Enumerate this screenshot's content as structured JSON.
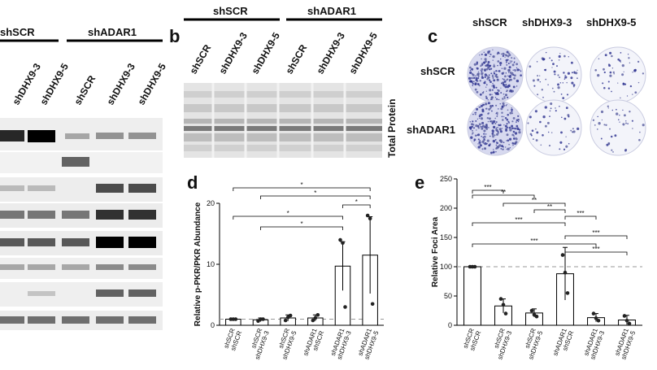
{
  "groups": {
    "shscr": "shSCR",
    "shadar1": "shADAR1"
  },
  "lanes": [
    "shSCR",
    "shDHX9-3",
    "shDHX9-5",
    "shSCR",
    "shDHX9-3",
    "shDHX9-5"
  ],
  "panel_a": {
    "lanes_visible": [
      "shDHX9-3",
      "shDHX9-5",
      "shSCR",
      "shDHX9-3",
      "shDHX9-5"
    ]
  },
  "panel_b": {
    "letter": "b",
    "side_label": "Total Protein"
  },
  "panel_c": {
    "letter": "c",
    "col_headers": [
      "shSCR",
      "shDHX9-3",
      "shDHX9-5"
    ],
    "row_headers": [
      "shSCR",
      "shADAR1"
    ]
  },
  "chart_data": [
    {
      "panel": "d",
      "type": "bar",
      "ylabel": "Relative p-PKR/PKR Abundance",
      "ylim": [
        0,
        20
      ],
      "yticks": [
        "0",
        "10",
        "20"
      ],
      "categories": [
        [
          "shSCR",
          "shSCR"
        ],
        [
          "shSCR",
          "shDHX9-3"
        ],
        [
          "shSCR",
          "shDHX9-5"
        ],
        [
          "shADAR1",
          "shSCR"
        ],
        [
          "shADAR1",
          "shDHX9-3"
        ],
        [
          "shADAR1",
          "shDHX9-5"
        ]
      ],
      "values": [
        1.0,
        0.9,
        1.2,
        1.2,
        9.7,
        11.5
      ],
      "errors": [
        0.1,
        0.3,
        0.5,
        0.5,
        4.0,
        6.3
      ],
      "points": [
        [
          1.0,
          1.0,
          1.0
        ],
        [
          0.7,
          1.0,
          1.0
        ],
        [
          0.8,
          1.3,
          1.6
        ],
        [
          0.8,
          1.2,
          1.7
        ],
        [
          14.0,
          13.5,
          3.0
        ],
        [
          18.0,
          17.5,
          3.5
        ]
      ],
      "reference_line": 1,
      "sig_label": "*"
    },
    {
      "panel": "e",
      "type": "bar",
      "ylabel": "Relative Foci Area",
      "ylim": [
        0,
        250
      ],
      "yticks": [
        "0",
        "50",
        "100",
        "150",
        "200",
        "250"
      ],
      "categories": [
        [
          "shSCR",
          "shSCR"
        ],
        [
          "shSCR",
          "shDHX9-3"
        ],
        [
          "shSCR",
          "shDHX9-5"
        ],
        [
          "shADAR1",
          "shSCR"
        ],
        [
          "shADAR1",
          "shDHX9-3"
        ],
        [
          "shADAR1",
          "shDHX9-5"
        ]
      ],
      "values": [
        100,
        33,
        21,
        88,
        13,
        9
      ],
      "errors": [
        1,
        12,
        7,
        45,
        7,
        8
      ],
      "points": [
        [
          100,
          100,
          100
        ],
        [
          45,
          35,
          20
        ],
        [
          25,
          18,
          15
        ],
        [
          120,
          90,
          55
        ],
        [
          20,
          12,
          8
        ],
        [
          16,
          8,
          3
        ]
      ],
      "reference_line": 100
    }
  ],
  "sig_e": [
    "***",
    "**",
    "**",
    "**",
    "***",
    "***",
    "***",
    "***",
    "***"
  ]
}
